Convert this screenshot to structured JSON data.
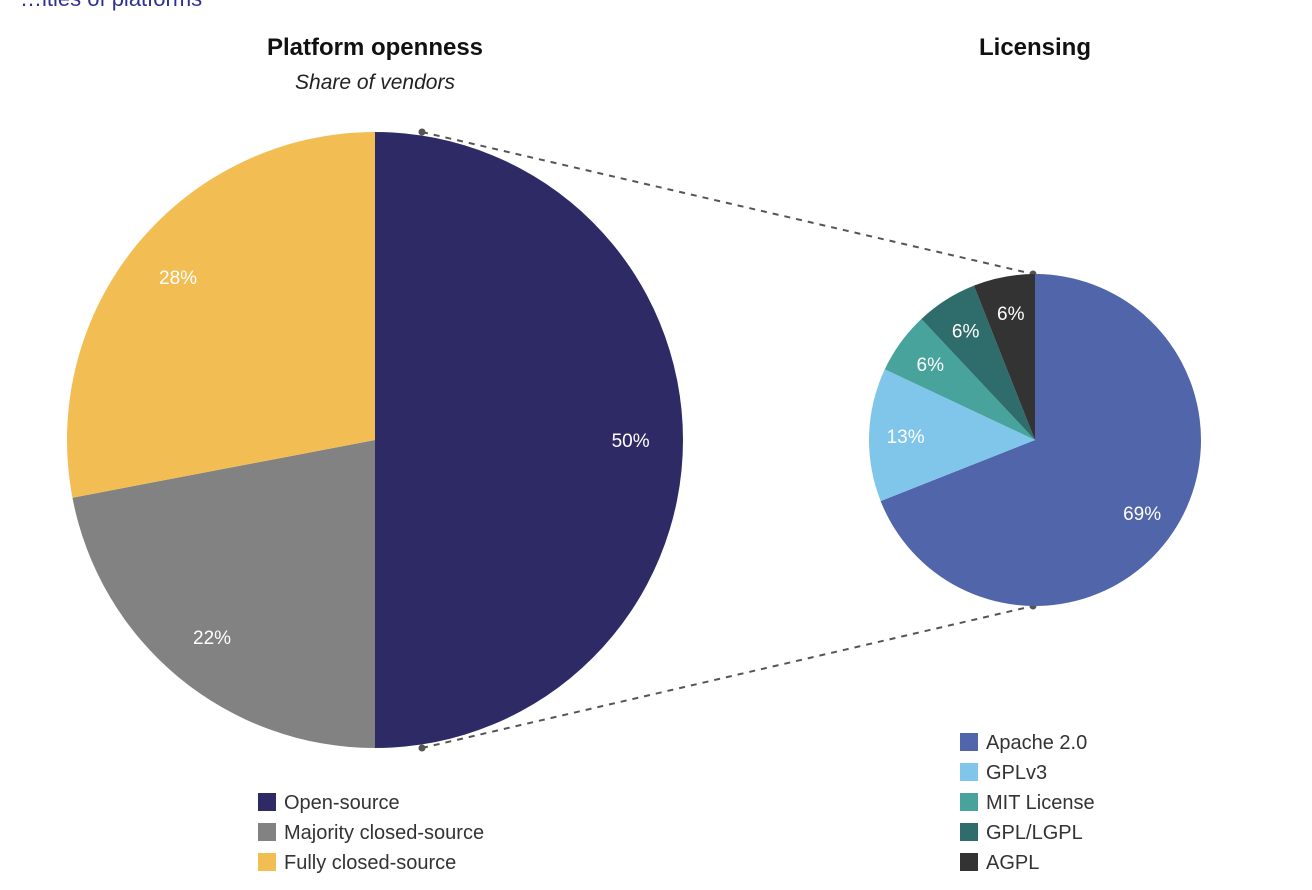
{
  "chart_data": [
    {
      "type": "pie",
      "title": "Platform openness",
      "subtitle": "Share of vendors",
      "slices": [
        {
          "label": "Open-source",
          "value": 50,
          "display": "50%",
          "color": "#2e2a66"
        },
        {
          "label": "Majority closed-source",
          "value": 22,
          "display": "22%",
          "color": "#828282"
        },
        {
          "label": "Fully closed-source",
          "value": 28,
          "display": "28%",
          "color": "#f2be54"
        }
      ],
      "legend_position": "bottom"
    },
    {
      "type": "pie",
      "title": "Licensing",
      "slices": [
        {
          "label": "Apache 2.0",
          "value": 69,
          "display": "69%",
          "color": "#5065aa"
        },
        {
          "label": "GPLv3",
          "value": 13,
          "display": "13%",
          "color": "#80c6eb"
        },
        {
          "label": "MIT License",
          "value": 6,
          "display": "6%",
          "color": "#47a39c"
        },
        {
          "label": "GPL/LGPL",
          "value": 6,
          "display": "6%",
          "color": "#2e6d6b"
        },
        {
          "label": "AGPL",
          "value": 6,
          "display": "6%",
          "color": "#333333"
        }
      ],
      "legend_position": "bottom"
    }
  ],
  "page": {
    "top_cut_text": "…ities of platforms"
  }
}
